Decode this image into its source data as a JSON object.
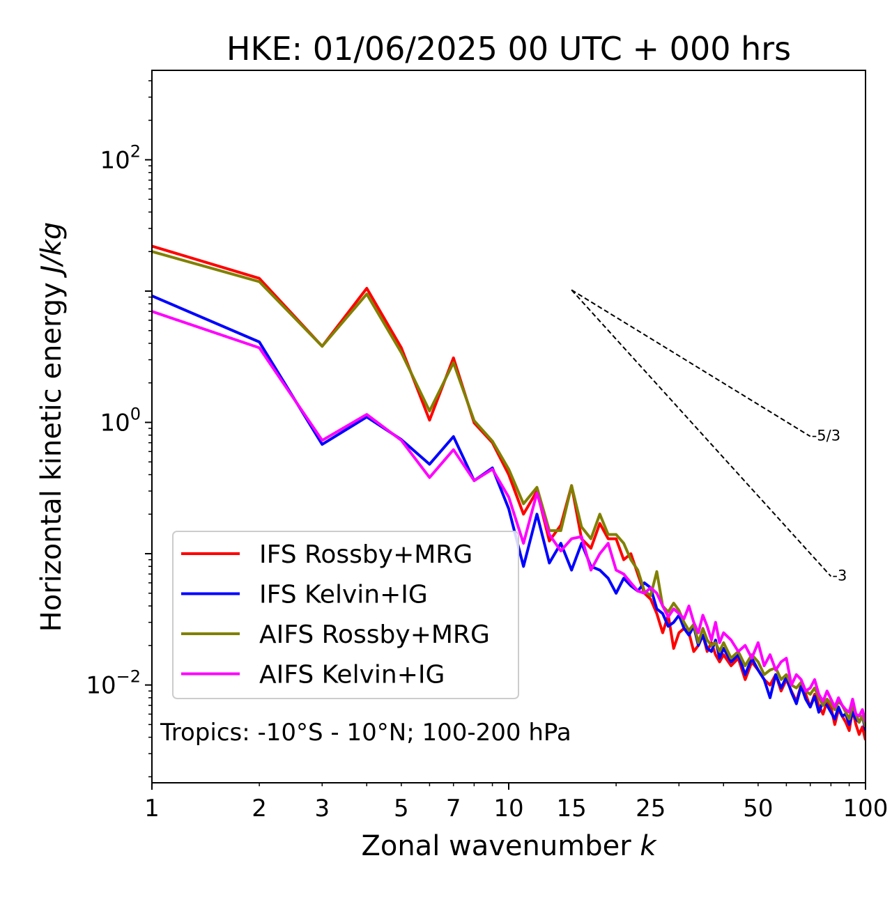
{
  "chart_data": {
    "type": "line",
    "title": "HKE: 01/06/2025 00 UTC + 000 hrs",
    "xlabel": "Zonal wavenumber ",
    "xlabel_italic": "k",
    "ylabel": "Horizontal kinetic energy ",
    "ylabel_italic": "J/kg",
    "x_scale": "log",
    "y_scale": "log",
    "xlim": [
      1,
      100
    ],
    "ylim": [
      0.0018,
      480
    ],
    "xticks": [
      1,
      2,
      3,
      5,
      7,
      10,
      15,
      25,
      50,
      100
    ],
    "xtick_labels": [
      "1",
      "2",
      "3",
      "5",
      "7",
      "10",
      "15",
      "25",
      "50",
      "100"
    ],
    "yticks": [
      {
        "value": 100,
        "base": "10",
        "exp": "2"
      },
      {
        "value": 1,
        "base": "10",
        "exp": "0"
      },
      {
        "value": 0.01,
        "base": "10",
        "exp": "−2"
      }
    ],
    "grid": false,
    "legend_position": "lower-left",
    "annotation": "Tropics: -10°S - 10°N; 100-200 hPa",
    "reference_slopes": [
      {
        "label": "-5/3",
        "slope": -1.6667,
        "x_start": 15,
        "y_start": 10.2,
        "x_end": 70
      },
      {
        "label": "-3",
        "slope": -3,
        "x_start": 15,
        "y_start": 10.2,
        "x_end": 80
      }
    ],
    "series": [
      {
        "name": "IFS Rossby+MRG",
        "color": "#ff0000",
        "x": [
          1,
          2,
          3,
          4,
          5,
          6,
          7,
          8,
          9,
          10,
          11,
          12,
          13,
          14,
          15,
          16,
          17,
          18,
          19,
          20,
          21,
          22,
          23,
          24,
          25,
          26,
          27,
          28,
          29,
          30,
          31,
          32,
          33,
          34,
          35,
          36,
          37,
          38,
          39,
          40,
          42,
          44,
          46,
          48,
          50,
          52,
          54,
          56,
          58,
          60,
          62,
          64,
          66,
          68,
          70,
          72,
          74,
          76,
          78,
          80,
          82,
          84,
          86,
          88,
          90,
          92,
          94,
          96,
          98,
          100
        ],
        "values": [
          22,
          12.5,
          3.8,
          10.5,
          3.7,
          1.04,
          3.1,
          0.99,
          0.7,
          0.4,
          0.2,
          0.3,
          0.125,
          0.165,
          0.33,
          0.13,
          0.11,
          0.17,
          0.13,
          0.13,
          0.09,
          0.1,
          0.07,
          0.05,
          0.045,
          0.035,
          0.025,
          0.034,
          0.019,
          0.025,
          0.027,
          0.025,
          0.018,
          0.02,
          0.024,
          0.018,
          0.021,
          0.017,
          0.015,
          0.017,
          0.014,
          0.016,
          0.011,
          0.015,
          0.013,
          0.011,
          0.01,
          0.012,
          0.009,
          0.011,
          0.009,
          0.0075,
          0.01,
          0.0085,
          0.0068,
          0.0085,
          0.007,
          0.006,
          0.0075,
          0.0068,
          0.005,
          0.0065,
          0.0058,
          0.0052,
          0.0045,
          0.0065,
          0.005,
          0.0042,
          0.0048,
          0.0038
        ]
      },
      {
        "name": "IFS Kelvin+IG",
        "color": "#0000ff",
        "x": [
          1,
          2,
          3,
          4,
          5,
          6,
          7,
          8,
          9,
          10,
          11,
          12,
          13,
          14,
          15,
          16,
          17,
          18,
          19,
          20,
          21,
          22,
          23,
          24,
          25,
          26,
          27,
          28,
          29,
          30,
          31,
          32,
          33,
          34,
          35,
          36,
          37,
          38,
          39,
          40,
          42,
          44,
          46,
          48,
          50,
          52,
          54,
          56,
          58,
          60,
          62,
          64,
          66,
          68,
          70,
          72,
          74,
          76,
          78,
          80,
          82,
          84,
          86,
          88,
          90,
          92,
          94,
          96,
          98,
          100
        ],
        "values": [
          9.2,
          4.1,
          0.68,
          1.1,
          0.74,
          0.48,
          0.78,
          0.36,
          0.45,
          0.22,
          0.08,
          0.2,
          0.085,
          0.12,
          0.075,
          0.12,
          0.08,
          0.075,
          0.065,
          0.05,
          0.065,
          0.057,
          0.052,
          0.06,
          0.055,
          0.038,
          0.035,
          0.028,
          0.03,
          0.034,
          0.027,
          0.024,
          0.028,
          0.02,
          0.024,
          0.019,
          0.018,
          0.022,
          0.016,
          0.019,
          0.015,
          0.017,
          0.012,
          0.016,
          0.013,
          0.011,
          0.008,
          0.012,
          0.0095,
          0.0115,
          0.0088,
          0.0072,
          0.0098,
          0.0078,
          0.0068,
          0.0082,
          0.0062,
          0.0075,
          0.007,
          0.0062,
          0.0055,
          0.0068,
          0.0058,
          0.006,
          0.005,
          0.0062,
          0.0055,
          0.0052,
          0.0058,
          0.0045
        ]
      },
      {
        "name": "AIFS Rossby+MRG",
        "color": "#808000",
        "x": [
          1,
          2,
          3,
          4,
          5,
          6,
          7,
          8,
          9,
          10,
          11,
          12,
          13,
          14,
          15,
          16,
          17,
          18,
          19,
          20,
          21,
          22,
          23,
          24,
          25,
          26,
          27,
          28,
          29,
          30,
          31,
          32,
          33,
          34,
          35,
          36,
          37,
          38,
          39,
          40,
          42,
          44,
          46,
          48,
          50,
          52,
          54,
          56,
          58,
          60,
          62,
          64,
          66,
          68,
          70,
          72,
          74,
          76,
          78,
          80,
          82,
          84,
          86,
          88,
          90,
          92,
          94,
          96,
          98,
          100
        ],
        "values": [
          20,
          11.8,
          3.8,
          9.5,
          3.4,
          1.22,
          2.85,
          1.03,
          0.72,
          0.44,
          0.24,
          0.32,
          0.15,
          0.15,
          0.33,
          0.16,
          0.13,
          0.2,
          0.14,
          0.14,
          0.12,
          0.09,
          0.075,
          0.052,
          0.048,
          0.073,
          0.04,
          0.036,
          0.042,
          0.037,
          0.03,
          0.026,
          0.029,
          0.021,
          0.027,
          0.022,
          0.02,
          0.021,
          0.018,
          0.021,
          0.016,
          0.018,
          0.014,
          0.017,
          0.015,
          0.012,
          0.013,
          0.0135,
          0.011,
          0.012,
          0.01,
          0.0095,
          0.0105,
          0.009,
          0.0085,
          0.0095,
          0.008,
          0.007,
          0.0078,
          0.0072,
          0.0065,
          0.0075,
          0.007,
          0.0062,
          0.0055,
          0.007,
          0.006,
          0.0052,
          0.0058,
          0.0048
        ]
      },
      {
        "name": "AIFS Kelvin+IG",
        "color": "#ff00ff",
        "x": [
          1,
          2,
          3,
          4,
          5,
          6,
          7,
          8,
          9,
          10,
          11,
          12,
          13,
          14,
          15,
          16,
          17,
          18,
          19,
          20,
          21,
          22,
          23,
          24,
          25,
          26,
          27,
          28,
          29,
          30,
          31,
          32,
          33,
          34,
          35,
          36,
          37,
          38,
          39,
          40,
          42,
          44,
          46,
          48,
          50,
          52,
          54,
          56,
          58,
          60,
          62,
          64,
          66,
          68,
          70,
          72,
          74,
          76,
          78,
          80,
          82,
          84,
          86,
          88,
          90,
          92,
          94,
          96,
          98,
          100
        ],
        "values": [
          7,
          3.7,
          0.73,
          1.15,
          0.73,
          0.38,
          0.62,
          0.36,
          0.44,
          0.27,
          0.12,
          0.29,
          0.14,
          0.105,
          0.13,
          0.135,
          0.075,
          0.1,
          0.12,
          0.075,
          0.07,
          0.06,
          0.052,
          0.05,
          0.055,
          0.05,
          0.04,
          0.033,
          0.038,
          0.035,
          0.032,
          0.04,
          0.03,
          0.025,
          0.034,
          0.028,
          0.022,
          0.03,
          0.021,
          0.025,
          0.022,
          0.018,
          0.02,
          0.016,
          0.021,
          0.014,
          0.017,
          0.013,
          0.015,
          0.016,
          0.01,
          0.012,
          0.011,
          0.009,
          0.0095,
          0.011,
          0.0085,
          0.0075,
          0.009,
          0.0078,
          0.0068,
          0.008,
          0.007,
          0.0065,
          0.0062,
          0.0078,
          0.006,
          0.0058,
          0.0065,
          0.0052
        ]
      }
    ]
  }
}
